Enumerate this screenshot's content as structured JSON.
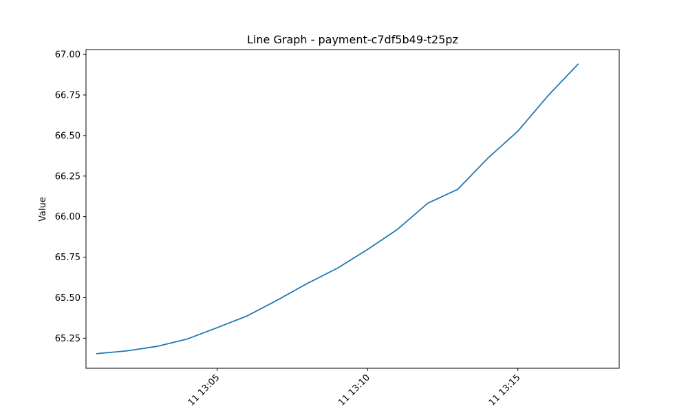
{
  "chart_data": {
    "type": "line",
    "title": "Line Graph - payment-c7df5b49-t25pz",
    "xlabel": "",
    "ylabel": "Value",
    "grid": false,
    "x": [
      "13:01",
      "13:02",
      "13:03",
      "13:04",
      "13:05",
      "13:06",
      "13:07",
      "13:08",
      "13:09",
      "13:10",
      "13:11",
      "13:12",
      "13:13",
      "13:14",
      "13:15",
      "13:16",
      "13:17"
    ],
    "xlim_minutes": [
      0.64,
      18.37
    ],
    "x_ticks": [
      {
        "minute": 5,
        "label": "11 13:05"
      },
      {
        "minute": 10,
        "label": "11 13:10"
      },
      {
        "minute": 15,
        "label": "11 13:15"
      }
    ],
    "ylim": [
      65.065,
      67.03
    ],
    "y_ticks": [
      "65.25",
      "65.50",
      "65.75",
      "66.00",
      "66.25",
      "66.50",
      "66.75",
      "67.00"
    ],
    "series": [
      {
        "color": "#1f77b4",
        "values": [
          65.155,
          65.172,
          65.2,
          65.245,
          65.315,
          65.388,
          65.485,
          65.588,
          65.682,
          65.797,
          65.922,
          66.082,
          66.168,
          66.36,
          66.527,
          66.745,
          66.94
        ]
      }
    ]
  }
}
